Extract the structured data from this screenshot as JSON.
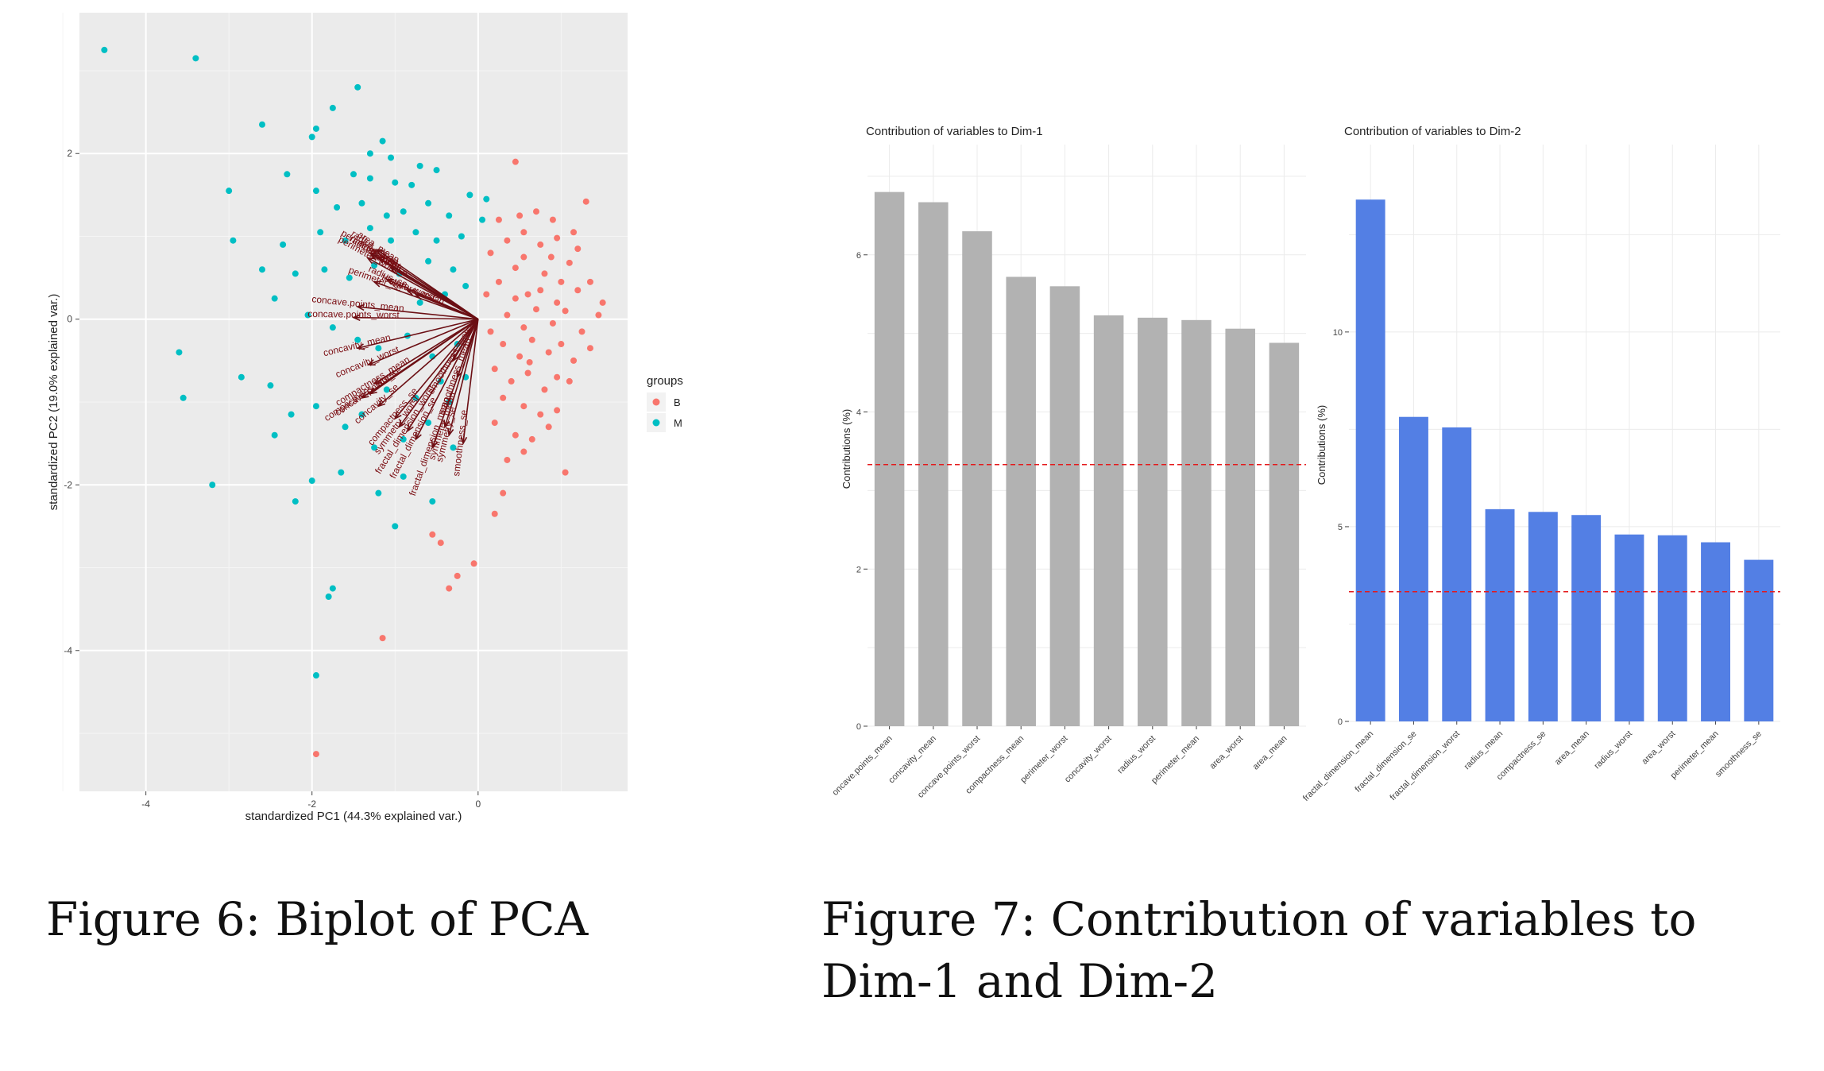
{
  "figure6": {
    "caption": "Figure 6: Biplot of PCA",
    "chart_data": {
      "type": "scatter",
      "xlabel": "standardized PC1 (44.3% explained var.)",
      "ylabel": "standardized PC2 (19.0% explained var.)",
      "xlim": [
        -4.8,
        1.8
      ],
      "ylim": [
        -5.7,
        3.7
      ],
      "xticks": [
        -4,
        -2,
        0
      ],
      "yticks": [
        -4,
        -2,
        0,
        2
      ],
      "legend_title": "groups",
      "legend_placement": "right",
      "legend": [
        {
          "name": "B",
          "color": "#F8766D"
        },
        {
          "name": "M",
          "color": "#00BFC4"
        }
      ],
      "series": [
        {
          "name": "B",
          "color": "#F8766D",
          "points": [
            [
              0.25,
              0.45
            ],
            [
              0.45,
              0.62
            ],
            [
              0.6,
              0.3
            ],
            [
              0.8,
              0.55
            ],
            [
              0.95,
              0.2
            ],
            [
              1.1,
              0.68
            ],
            [
              1.2,
              0.35
            ],
            [
              0.35,
              0.05
            ],
            [
              0.55,
              -0.1
            ],
            [
              0.7,
              0.12
            ],
            [
              0.9,
              -0.05
            ],
            [
              1.05,
              0.1
            ],
            [
              1.25,
              -0.15
            ],
            [
              0.3,
              -0.3
            ],
            [
              0.5,
              -0.45
            ],
            [
              0.65,
              -0.25
            ],
            [
              0.85,
              -0.4
            ],
            [
              1.0,
              -0.3
            ],
            [
              1.15,
              -0.5
            ],
            [
              0.2,
              -0.6
            ],
            [
              0.4,
              -0.75
            ],
            [
              0.6,
              -0.65
            ],
            [
              0.8,
              -0.85
            ],
            [
              0.95,
              -0.7
            ],
            [
              0.15,
              0.8
            ],
            [
              0.35,
              0.95
            ],
            [
              0.55,
              1.05
            ],
            [
              0.75,
              0.9
            ],
            [
              0.95,
              0.98
            ],
            [
              1.15,
              1.05
            ],
            [
              0.25,
              1.2
            ],
            [
              0.5,
              1.25
            ],
            [
              0.7,
              1.3
            ],
            [
              0.9,
              1.2
            ],
            [
              1.2,
              0.85
            ],
            [
              1.35,
              0.45
            ],
            [
              1.45,
              0.05
            ],
            [
              1.35,
              -0.35
            ],
            [
              0.1,
              0.3
            ],
            [
              0.15,
              -0.15
            ],
            [
              0.45,
              0.25
            ],
            [
              0.75,
              0.35
            ],
            [
              1.0,
              0.45
            ],
            [
              0.3,
              -0.95
            ],
            [
              0.55,
              -1.05
            ],
            [
              0.75,
              -1.15
            ],
            [
              0.95,
              -1.1
            ],
            [
              0.2,
              -1.25
            ],
            [
              0.45,
              -1.4
            ],
            [
              0.65,
              -1.45
            ],
            [
              0.85,
              -1.3
            ],
            [
              0.35,
              -1.7
            ],
            [
              0.55,
              -1.6
            ],
            [
              0.3,
              -2.1
            ],
            [
              0.2,
              -2.35
            ],
            [
              1.05,
              -1.85
            ],
            [
              0.45,
              1.9
            ],
            [
              1.3,
              1.42
            ],
            [
              1.5,
              0.2
            ],
            [
              -0.05,
              -2.95
            ],
            [
              -0.25,
              -3.1
            ],
            [
              -0.35,
              -3.25
            ],
            [
              -0.45,
              -2.7
            ],
            [
              -0.55,
              -2.6
            ],
            [
              -1.15,
              -3.85
            ],
            [
              -1.95,
              -5.25
            ],
            [
              0.55,
              0.75
            ],
            [
              0.62,
              -0.52
            ],
            [
              0.88,
              0.75
            ],
            [
              1.1,
              -0.75
            ]
          ]
        },
        {
          "name": "M",
          "color": "#00BFC4",
          "points": [
            [
              -4.5,
              3.25
            ],
            [
              -3.4,
              3.15
            ],
            [
              -1.45,
              2.8
            ],
            [
              -2.6,
              2.35
            ],
            [
              -1.95,
              2.3
            ],
            [
              -2.0,
              2.2
            ],
            [
              -1.75,
              2.55
            ],
            [
              -1.15,
              2.15
            ],
            [
              -3.0,
              1.55
            ],
            [
              -2.95,
              0.95
            ],
            [
              -2.3,
              1.75
            ],
            [
              -1.95,
              1.55
            ],
            [
              -1.5,
              1.75
            ],
            [
              -1.3,
              1.7
            ],
            [
              -1.0,
              1.65
            ],
            [
              -0.8,
              1.62
            ],
            [
              -0.5,
              1.8
            ],
            [
              -0.1,
              1.5
            ],
            [
              0.1,
              1.45
            ],
            [
              -1.7,
              1.35
            ],
            [
              -1.4,
              1.4
            ],
            [
              -1.1,
              1.25
            ],
            [
              -0.9,
              1.3
            ],
            [
              -0.6,
              1.4
            ],
            [
              -0.35,
              1.25
            ],
            [
              -1.9,
              1.05
            ],
            [
              -1.6,
              0.95
            ],
            [
              -1.3,
              1.1
            ],
            [
              -1.05,
              0.95
            ],
            [
              -0.75,
              1.05
            ],
            [
              -0.5,
              0.95
            ],
            [
              -0.2,
              1.0
            ],
            [
              0.05,
              1.2
            ],
            [
              -2.2,
              0.55
            ],
            [
              -1.85,
              0.6
            ],
            [
              -1.55,
              0.5
            ],
            [
              -1.25,
              0.65
            ],
            [
              -0.95,
              0.55
            ],
            [
              -0.6,
              0.7
            ],
            [
              -0.3,
              0.6
            ],
            [
              -2.45,
              0.25
            ],
            [
              -2.05,
              0.05
            ],
            [
              -1.75,
              -0.1
            ],
            [
              -1.45,
              -0.25
            ],
            [
              -1.2,
              -0.35
            ],
            [
              -0.85,
              -0.2
            ],
            [
              -0.55,
              -0.45
            ],
            [
              -0.25,
              -0.3
            ],
            [
              -3.6,
              -0.4
            ],
            [
              -3.55,
              -0.95
            ],
            [
              -2.85,
              -0.7
            ],
            [
              -2.5,
              -0.8
            ],
            [
              -2.25,
              -1.15
            ],
            [
              -2.45,
              -1.4
            ],
            [
              -1.95,
              -1.05
            ],
            [
              -1.6,
              -1.3
            ],
            [
              -1.25,
              -1.55
            ],
            [
              -0.9,
              -1.45
            ],
            [
              -0.6,
              -1.25
            ],
            [
              -0.35,
              -1.0
            ],
            [
              -0.15,
              -0.7
            ],
            [
              -3.2,
              -2.0
            ],
            [
              -1.65,
              -1.85
            ],
            [
              -1.2,
              -2.1
            ],
            [
              -2.2,
              -2.2
            ],
            [
              -1.0,
              -2.5
            ],
            [
              -1.75,
              -3.25
            ],
            [
              -1.8,
              -3.35
            ],
            [
              -1.95,
              -4.3
            ],
            [
              -2.0,
              -1.95
            ],
            [
              -1.4,
              -1.15
            ],
            [
              -1.1,
              -0.85
            ],
            [
              -0.75,
              -0.95
            ],
            [
              -0.45,
              -0.75
            ],
            [
              -0.7,
              0.2
            ],
            [
              -0.4,
              0.3
            ],
            [
              -0.15,
              0.4
            ],
            [
              -2.6,
              0.6
            ],
            [
              -2.35,
              0.9
            ],
            [
              -1.05,
              1.95
            ],
            [
              -1.3,
              2.0
            ],
            [
              -0.7,
              1.85
            ],
            [
              -0.9,
              -1.9
            ],
            [
              -0.55,
              -2.2
            ],
            [
              -0.3,
              -1.55
            ]
          ]
        }
      ],
      "loadings": [
        {
          "label": "radius_mean",
          "x": -1.26,
          "y": 0.83
        },
        {
          "label": "perimeter_mean",
          "x": -1.3,
          "y": 0.8
        },
        {
          "label": "area_mean",
          "x": -1.22,
          "y": 0.84
        },
        {
          "label": "perimeter_worst",
          "x": -1.33,
          "y": 0.74
        },
        {
          "label": "area_worst",
          "x": -1.2,
          "y": 0.75
        },
        {
          "label": "radius_worst",
          "x": -1.28,
          "y": 0.78
        },
        {
          "label": "area_se",
          "x": -1.05,
          "y": 0.62
        },
        {
          "label": "radius_se",
          "x": -1.1,
          "y": 0.48
        },
        {
          "label": "perimeter_se",
          "x": -1.25,
          "y": 0.45
        },
        {
          "label": "texture_worst",
          "x": -0.85,
          "y": 0.35
        },
        {
          "label": "texture_mean",
          "x": -0.75,
          "y": 0.3
        },
        {
          "label": "concave.points_mean",
          "x": -1.45,
          "y": 0.15
        },
        {
          "label": "concave.points_worst",
          "x": -1.5,
          "y": 0.02
        },
        {
          "label": "concavity_mean",
          "x": -1.45,
          "y": -0.35
        },
        {
          "label": "concavity_worst",
          "x": -1.32,
          "y": -0.55
        },
        {
          "label": "compactness_mean",
          "x": -1.25,
          "y": -0.78
        },
        {
          "label": "compactness_worst",
          "x": -1.4,
          "y": -0.95
        },
        {
          "label": "concave.points_se",
          "x": -1.3,
          "y": -0.9
        },
        {
          "label": "concavity_se",
          "x": -1.2,
          "y": -1.05
        },
        {
          "label": "compactness_se",
          "x": -1.0,
          "y": -1.2
        },
        {
          "label": "symmetry_worst",
          "x": -0.95,
          "y": -1.3
        },
        {
          "label": "fractal_dimension_worst",
          "x": -0.85,
          "y": -1.35
        },
        {
          "label": "fractal_dimension_se",
          "x": -0.75,
          "y": -1.45
        },
        {
          "label": "fractal_dimension_mean",
          "x": -0.55,
          "y": -1.55
        },
        {
          "label": "symmetry_mean",
          "x": -0.4,
          "y": -1.3
        },
        {
          "label": "symmetry_se",
          "x": -0.35,
          "y": -1.4
        },
        {
          "label": "smoothness_se",
          "x": -0.18,
          "y": -1.5
        },
        {
          "label": "smoothness_mean",
          "x": -0.25,
          "y": -0.7
        },
        {
          "label": "smoothness_worst",
          "x": -0.3,
          "y": -0.5
        }
      ],
      "grid": true
    }
  },
  "figure7": {
    "caption": "Figure 7: Contribution of variables to Dim-1 and Dim-2",
    "chart_data": [
      {
        "type": "bar",
        "title": "Contribution of variables to Dim-1",
        "ylabel": "Contributions (%)",
        "xlabel": "",
        "bar_color": "#b2b2b2",
        "categories": [
          "concave.points_mean",
          "concavity_mean",
          "concave.points_worst",
          "compactness_mean",
          "perimeter_worst",
          "concavity_worst",
          "radius_worst",
          "perimeter_mean",
          "area_worst",
          "area_mean"
        ],
        "tick_labels": [
          "oncave.points_mean",
          "concavity_mean",
          "concave.points_worst",
          "compactness_mean",
          "perimeter_worst",
          "concavity_worst",
          "radius_worst",
          "perimeter_mean",
          "area_worst",
          "area_mean"
        ],
        "values": [
          6.8,
          6.67,
          6.3,
          5.72,
          5.6,
          5.23,
          5.2,
          5.17,
          5.06,
          4.88
        ],
        "ylim": [
          0,
          7.1
        ],
        "yticks": [
          0,
          2,
          4,
          6
        ],
        "reference_line": 3.33,
        "reference_color": "#e41a1c"
      },
      {
        "type": "bar",
        "title": "Contribution of variables to Dim-2",
        "ylabel": "Contributions (%)",
        "xlabel": "",
        "bar_color": "#537fe4",
        "categories": [
          "fractal_dimension_mean",
          "fractal_dimension_se",
          "fractal_dimension_worst",
          "radius_mean",
          "compactness_se",
          "area_mean",
          "radius_worst",
          "area_worst",
          "perimeter_mean",
          "smoothness_se"
        ],
        "tick_labels": [
          "fractal_dimension_mean",
          "fractal_dimension_se",
          "fractal_dimension_worst",
          "radius_mean",
          "compactness_se",
          "area_mean",
          "radius_worst",
          "area_worst",
          "perimeter_mean",
          "smoothness_se"
        ],
        "values": [
          13.4,
          7.82,
          7.55,
          5.45,
          5.38,
          5.3,
          4.8,
          4.78,
          4.6,
          4.15
        ],
        "ylim": [
          0,
          14.2
        ],
        "yticks": [
          0,
          5,
          10
        ],
        "reference_line": 3.33,
        "reference_color": "#e41a1c"
      }
    ]
  }
}
